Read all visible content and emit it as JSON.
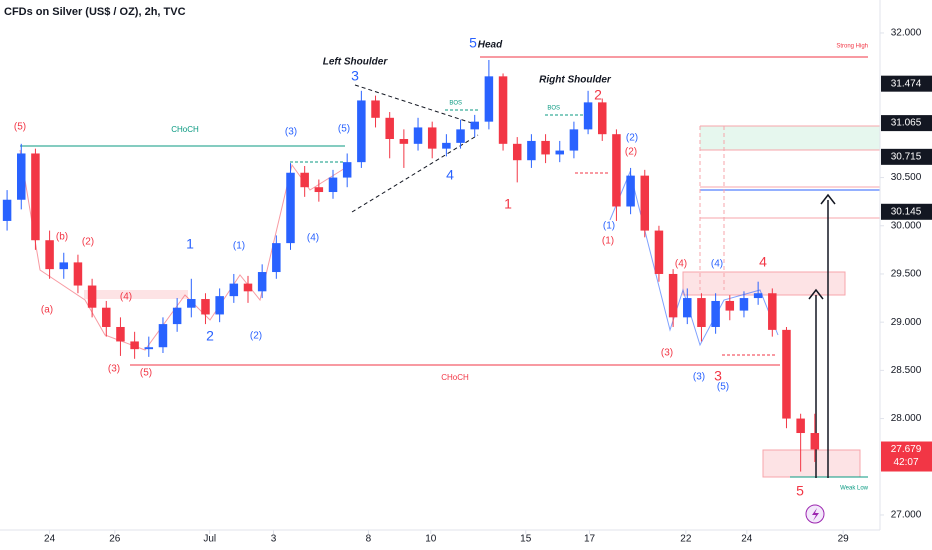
{
  "chart_data": {
    "type": "candlestick",
    "title": "CFDs on Silver (US$ / OZ), 2h, TVC",
    "up_color": "#2962ff",
    "down_color": "#f23645",
    "ylim": [
      26.844,
      32.342
    ],
    "xlim": [
      -0.5,
      61.6
    ],
    "yticks": [
      {
        "value": 32,
        "label": "32.000"
      },
      {
        "value": 30.5,
        "label": "30.500"
      },
      {
        "value": 30,
        "label": "30.000"
      },
      {
        "value": 29.5,
        "label": "29.500"
      },
      {
        "value": 29,
        "label": "29.000"
      },
      {
        "value": 28.5,
        "label": "28.500"
      },
      {
        "value": 28,
        "label": "28.000"
      },
      {
        "value": 27,
        "label": "27.000"
      }
    ],
    "xticks": [
      {
        "value": 3.0,
        "label": "24"
      },
      {
        "value": 7.6,
        "label": "26"
      },
      {
        "value": 14.3,
        "label": "Jul"
      },
      {
        "value": 18.8,
        "label": "3"
      },
      {
        "value": 25.5,
        "label": "8"
      },
      {
        "value": 29.9,
        "label": "10"
      },
      {
        "value": 36.6,
        "label": "15"
      },
      {
        "value": 41.1,
        "label": "17"
      },
      {
        "value": 47.9,
        "label": "22"
      },
      {
        "value": 52.2,
        "label": "24"
      },
      {
        "value": 59.0,
        "label": "29"
      }
    ],
    "grid": false,
    "price_labels": [
      {
        "value": 31.474,
        "label": "31.474",
        "color": "#131722"
      },
      {
        "value": 31.065,
        "label": "31.065",
        "color": "#131722"
      },
      {
        "value": 30.715,
        "label": "30.715",
        "color": "#131722"
      },
      {
        "value": 30.145,
        "label": "30.145",
        "color": "#131722"
      },
      {
        "value": 27.679,
        "label": "27.679",
        "color": "#f23645"
      }
    ],
    "countdown": "42:07",
    "candles": [
      {
        "o": 30.05,
        "h": 30.37,
        "l": 29.95,
        "c": 30.27
      },
      {
        "o": 30.27,
        "h": 30.85,
        "l": 30.17,
        "c": 30.75
      },
      {
        "o": 30.75,
        "h": 30.8,
        "l": 29.75,
        "c": 29.85
      },
      {
        "o": 29.85,
        "h": 29.95,
        "l": 29.45,
        "c": 29.55
      },
      {
        "o": 29.55,
        "h": 29.72,
        "l": 29.45,
        "c": 29.62
      },
      {
        "o": 29.62,
        "h": 29.7,
        "l": 29.3,
        "c": 29.38
      },
      {
        "o": 29.38,
        "h": 29.45,
        "l": 29.05,
        "c": 29.15
      },
      {
        "o": 29.15,
        "h": 29.22,
        "l": 28.85,
        "c": 28.95
      },
      {
        "o": 28.95,
        "h": 29.05,
        "l": 28.65,
        "c": 28.8
      },
      {
        "o": 28.8,
        "h": 28.9,
        "l": 28.62,
        "c": 28.72
      },
      {
        "o": 28.72,
        "h": 28.85,
        "l": 28.64,
        "c": 28.74
      },
      {
        "o": 28.74,
        "h": 29.05,
        "l": 28.68,
        "c": 28.98
      },
      {
        "o": 28.98,
        "h": 29.25,
        "l": 28.9,
        "c": 29.15
      },
      {
        "o": 29.15,
        "h": 29.45,
        "l": 29.05,
        "c": 29.24
      },
      {
        "o": 29.24,
        "h": 29.3,
        "l": 28.98,
        "c": 29.08
      },
      {
        "o": 29.08,
        "h": 29.35,
        "l": 29.0,
        "c": 29.27
      },
      {
        "o": 29.27,
        "h": 29.5,
        "l": 29.2,
        "c": 29.4
      },
      {
        "o": 29.4,
        "h": 29.48,
        "l": 29.2,
        "c": 29.32
      },
      {
        "o": 29.32,
        "h": 29.6,
        "l": 29.25,
        "c": 29.52
      },
      {
        "o": 29.52,
        "h": 29.9,
        "l": 29.45,
        "c": 29.82
      },
      {
        "o": 29.82,
        "h": 30.65,
        "l": 29.75,
        "c": 30.55
      },
      {
        "o": 30.55,
        "h": 30.62,
        "l": 30.3,
        "c": 30.4
      },
      {
        "o": 30.4,
        "h": 30.48,
        "l": 30.25,
        "c": 30.35
      },
      {
        "o": 30.35,
        "h": 30.58,
        "l": 30.28,
        "c": 30.5
      },
      {
        "o": 30.5,
        "h": 30.75,
        "l": 30.4,
        "c": 30.66
      },
      {
        "o": 30.66,
        "h": 31.4,
        "l": 30.6,
        "c": 31.3
      },
      {
        "o": 31.3,
        "h": 31.35,
        "l": 31.02,
        "c": 31.12
      },
      {
        "o": 31.12,
        "h": 31.18,
        "l": 30.7,
        "c": 30.9
      },
      {
        "o": 30.9,
        "h": 31.0,
        "l": 30.6,
        "c": 30.85
      },
      {
        "o": 30.85,
        "h": 31.12,
        "l": 30.78,
        "c": 31.02
      },
      {
        "o": 31.02,
        "h": 31.08,
        "l": 30.7,
        "c": 30.8
      },
      {
        "o": 30.8,
        "h": 30.95,
        "l": 30.72,
        "c": 30.86
      },
      {
        "o": 30.86,
        "h": 31.1,
        "l": 30.8,
        "c": 31.0
      },
      {
        "o": 31.0,
        "h": 31.15,
        "l": 30.92,
        "c": 31.08
      },
      {
        "o": 31.08,
        "h": 31.72,
        "l": 31.0,
        "c": 31.55
      },
      {
        "o": 31.55,
        "h": 31.58,
        "l": 30.78,
        "c": 30.85
      },
      {
        "o": 30.85,
        "h": 30.92,
        "l": 30.45,
        "c": 30.68
      },
      {
        "o": 30.68,
        "h": 30.95,
        "l": 30.6,
        "c": 30.88
      },
      {
        "o": 30.88,
        "h": 30.95,
        "l": 30.65,
        "c": 30.74
      },
      {
        "o": 30.74,
        "h": 30.88,
        "l": 30.66,
        "c": 30.78
      },
      {
        "o": 30.78,
        "h": 31.08,
        "l": 30.7,
        "c": 31.0
      },
      {
        "o": 31.0,
        "h": 31.4,
        "l": 30.95,
        "c": 31.28
      },
      {
        "o": 31.28,
        "h": 31.32,
        "l": 30.88,
        "c": 30.95
      },
      {
        "o": 30.95,
        "h": 31.0,
        "l": 30.05,
        "c": 30.2
      },
      {
        "o": 30.2,
        "h": 30.6,
        "l": 30.12,
        "c": 30.52
      },
      {
        "o": 30.52,
        "h": 30.58,
        "l": 29.88,
        "c": 29.95
      },
      {
        "o": 29.95,
        "h": 30.0,
        "l": 29.42,
        "c": 29.5
      },
      {
        "o": 29.5,
        "h": 29.55,
        "l": 28.95,
        "c": 29.05
      },
      {
        "o": 29.05,
        "h": 29.35,
        "l": 28.98,
        "c": 29.25
      },
      {
        "o": 29.25,
        "h": 29.3,
        "l": 28.8,
        "c": 28.95
      },
      {
        "o": 28.95,
        "h": 29.3,
        "l": 28.88,
        "c": 29.22
      },
      {
        "o": 29.22,
        "h": 29.28,
        "l": 29.02,
        "c": 29.12
      },
      {
        "o": 29.12,
        "h": 29.32,
        "l": 29.05,
        "c": 29.25
      },
      {
        "o": 29.25,
        "h": 29.42,
        "l": 29.18,
        "c": 29.3
      },
      {
        "o": 29.3,
        "h": 29.35,
        "l": 28.85,
        "c": 28.92
      },
      {
        "o": 28.92,
        "h": 28.95,
        "l": 27.9,
        "c": 28.0
      },
      {
        "o": 28.0,
        "h": 28.05,
        "l": 27.45,
        "c": 27.85
      },
      {
        "o": 27.85,
        "h": 28.05,
        "l": 27.55,
        "c": 27.68
      }
    ],
    "annotations": [
      {
        "text": "Left Shoulder",
        "color": "#131722"
      },
      {
        "text": "Head",
        "color": "#131722"
      },
      {
        "text": "Right Shoulder",
        "color": "#131722"
      },
      {
        "text": "5",
        "color": "#2962ff"
      },
      {
        "text": "3",
        "color": "#2962ff"
      },
      {
        "text": "4",
        "color": "#2962ff"
      },
      {
        "text": "1",
        "color": "#2962ff"
      },
      {
        "text": "2",
        "color": "#2962ff"
      },
      {
        "text": "2",
        "color": "#f23645"
      },
      {
        "text": "1",
        "color": "#f23645"
      },
      {
        "text": "3",
        "color": "#f23645"
      },
      {
        "text": "4",
        "color": "#f23645"
      },
      {
        "text": "5",
        "color": "#f23645"
      },
      {
        "text": "CHoCH",
        "color": "#089981"
      },
      {
        "text": "CHoCH",
        "color": "#f23645"
      },
      {
        "text": "Strong High",
        "color": "#f23645"
      },
      {
        "text": "Weak Low",
        "color": "#089981"
      },
      {
        "text": "(5)",
        "color": "#f23645"
      },
      {
        "text": "(5)",
        "color": "#f23645"
      },
      {
        "text": "(3)",
        "color": "#f23645"
      },
      {
        "text": "(b)",
        "color": "#f23645"
      },
      {
        "text": "(2)",
        "color": "#f23645"
      },
      {
        "text": "(a)",
        "color": "#f23645"
      },
      {
        "text": "(4)",
        "color": "#f23645"
      },
      {
        "text": "(3)",
        "color": "#2962ff"
      },
      {
        "text": "(5)",
        "color": "#2962ff"
      },
      {
        "text": "(1)",
        "color": "#2962ff"
      },
      {
        "text": "(2)",
        "color": "#2962ff"
      },
      {
        "text": "(4)",
        "color": "#2962ff"
      },
      {
        "text": "(2)",
        "color": "#2962ff"
      },
      {
        "text": "(1)",
        "color": "#2962ff"
      },
      {
        "text": "(4)",
        "color": "#2962ff"
      },
      {
        "text": "(3)",
        "color": "#2962ff"
      },
      {
        "text": "(5)",
        "color": "#2962ff"
      },
      {
        "text": "(4)",
        "color": "#f23645"
      },
      {
        "text": "(3)",
        "color": "#f23645"
      },
      {
        "text": "(1)",
        "color": "#f23645"
      },
      {
        "text": "(2)",
        "color": "#f23645"
      },
      {
        "text": "BOS",
        "color": "#089981"
      },
      {
        "text": "BOS",
        "color": "#089981"
      }
    ]
  }
}
